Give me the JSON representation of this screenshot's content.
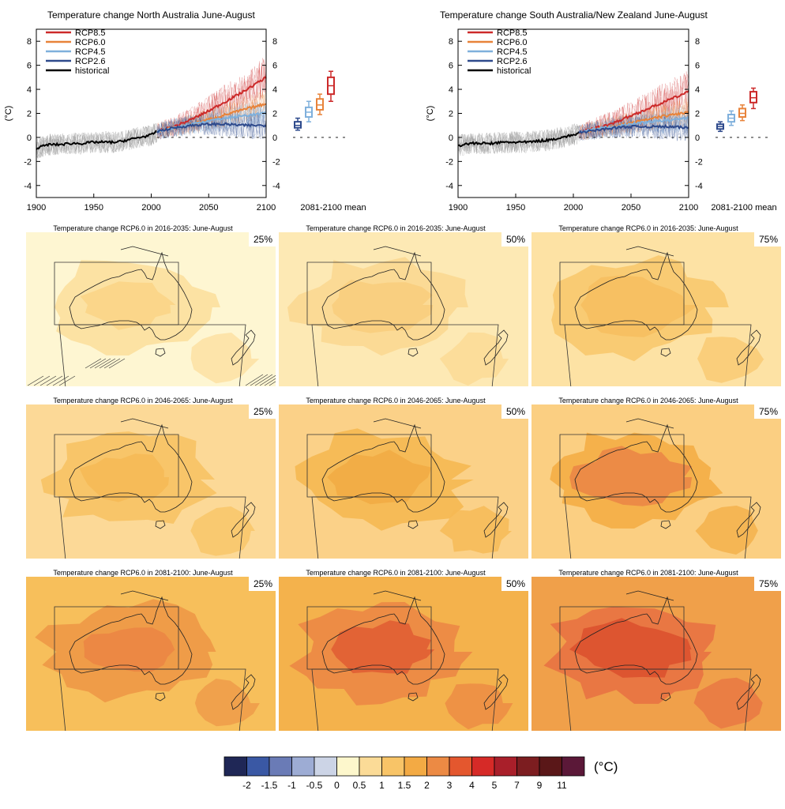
{
  "chart_data": [
    {
      "type": "line",
      "title": "Temperature change North Australia June-August",
      "ylabel": "(°C)",
      "xlim": [
        1900,
        2100
      ],
      "ylim": [
        -5,
        9
      ],
      "x_ticks": [
        "1900",
        "1950",
        "2000",
        "2050",
        "2100"
      ],
      "y_ticks": [
        "-4",
        "-2",
        "0",
        "2",
        "4",
        "6",
        "8"
      ],
      "legend": [
        "RCP8.5",
        "RCP6.0",
        "RCP4.5",
        "RCP2.6",
        "historical"
      ],
      "legend_placement": "top-left",
      "mean_label": "2081-2100 mean",
      "series": [
        {
          "name": "historical",
          "color": "#000000",
          "x": [
            1900,
            1910,
            1920,
            1930,
            1940,
            1950,
            1960,
            1970,
            1980,
            1990,
            2000,
            2005
          ],
          "y": [
            -0.9,
            -0.6,
            -0.6,
            -0.5,
            -0.5,
            -0.4,
            -0.4,
            -0.4,
            -0.2,
            0.0,
            0.2,
            0.5
          ]
        },
        {
          "name": "RCP8.5",
          "color": "#cc2a2a",
          "x": [
            2005,
            2020,
            2035,
            2050,
            2065,
            2080,
            2100
          ],
          "y": [
            0.5,
            0.9,
            1.5,
            2.2,
            3.0,
            3.8,
            5.0
          ]
        },
        {
          "name": "RCP6.0",
          "color": "#e8833a",
          "x": [
            2005,
            2020,
            2035,
            2050,
            2065,
            2080,
            2100
          ],
          "y": [
            0.5,
            0.8,
            1.1,
            1.5,
            1.9,
            2.3,
            2.8
          ]
        },
        {
          "name": "RCP4.5",
          "color": "#7fb0dc",
          "x": [
            2005,
            2020,
            2035,
            2050,
            2065,
            2080,
            2100
          ],
          "y": [
            0.5,
            0.8,
            1.1,
            1.4,
            1.6,
            1.8,
            2.0
          ]
        },
        {
          "name": "RCP2.6",
          "color": "#2e4a8c",
          "x": [
            2005,
            2020,
            2035,
            2050,
            2065,
            2080,
            2100
          ],
          "y": [
            0.5,
            0.8,
            1.0,
            1.1,
            1.1,
            1.0,
            1.0
          ]
        }
      ],
      "box_means": [
        {
          "name": "RCP2.6",
          "color": "#2e4a8c",
          "low": 0.6,
          "q1": 0.8,
          "median": 1.0,
          "q3": 1.3,
          "high": 1.6
        },
        {
          "name": "RCP4.5",
          "color": "#7fb0dc",
          "low": 1.3,
          "q1": 1.7,
          "median": 2.1,
          "q3": 2.5,
          "high": 3.0
        },
        {
          "name": "RCP6.0",
          "color": "#e8833a",
          "low": 1.9,
          "q1": 2.3,
          "median": 2.7,
          "q3": 3.2,
          "high": 3.6
        },
        {
          "name": "RCP8.5",
          "color": "#cc2a2a",
          "low": 3.0,
          "q1": 3.6,
          "median": 4.3,
          "q3": 5.0,
          "high": 5.5
        }
      ]
    },
    {
      "type": "line",
      "title": "Temperature change South Australia/New Zealand June-August",
      "ylabel": "(°C)",
      "xlim": [
        1900,
        2100
      ],
      "ylim": [
        -5,
        9
      ],
      "x_ticks": [
        "1900",
        "1950",
        "2000",
        "2050",
        "2100"
      ],
      "y_ticks": [
        "-4",
        "-2",
        "0",
        "2",
        "4",
        "6",
        "8"
      ],
      "legend": [
        "RCP8.5",
        "RCP6.0",
        "RCP4.5",
        "RCP2.6",
        "historical"
      ],
      "legend_placement": "top-left",
      "mean_label": "2081-2100 mean",
      "series": [
        {
          "name": "historical",
          "color": "#000000",
          "x": [
            1900,
            1910,
            1920,
            1930,
            1940,
            1950,
            1960,
            1970,
            1980,
            1990,
            2000,
            2005
          ],
          "y": [
            -0.7,
            -0.5,
            -0.5,
            -0.5,
            -0.4,
            -0.4,
            -0.4,
            -0.3,
            -0.2,
            0.0,
            0.2,
            0.4
          ]
        },
        {
          "name": "RCP8.5",
          "color": "#cc2a2a",
          "x": [
            2005,
            2020,
            2035,
            2050,
            2065,
            2080,
            2100
          ],
          "y": [
            0.4,
            0.8,
            1.2,
            1.8,
            2.4,
            3.0,
            3.8
          ]
        },
        {
          "name": "RCP6.0",
          "color": "#e8833a",
          "x": [
            2005,
            2020,
            2035,
            2050,
            2065,
            2080,
            2100
          ],
          "y": [
            0.4,
            0.7,
            0.9,
            1.2,
            1.5,
            1.8,
            2.1
          ]
        },
        {
          "name": "RCP4.5",
          "color": "#7fb0dc",
          "x": [
            2005,
            2020,
            2035,
            2050,
            2065,
            2080,
            2100
          ],
          "y": [
            0.4,
            0.7,
            0.9,
            1.1,
            1.3,
            1.4,
            1.6
          ]
        },
        {
          "name": "RCP2.6",
          "color": "#2e4a8c",
          "x": [
            2005,
            2020,
            2035,
            2050,
            2065,
            2080,
            2100
          ],
          "y": [
            0.4,
            0.6,
            0.8,
            0.9,
            0.9,
            0.9,
            0.8
          ]
        }
      ],
      "box_means": [
        {
          "name": "RCP2.6",
          "color": "#2e4a8c",
          "low": 0.5,
          "q1": 0.7,
          "median": 0.9,
          "q3": 1.1,
          "high": 1.3
        },
        {
          "name": "RCP4.5",
          "color": "#7fb0dc",
          "low": 1.0,
          "q1": 1.3,
          "median": 1.6,
          "q3": 1.9,
          "high": 2.2
        },
        {
          "name": "RCP6.0",
          "color": "#e8833a",
          "low": 1.4,
          "q1": 1.7,
          "median": 2.0,
          "q3": 2.4,
          "high": 2.7
        },
        {
          "name": "RCP8.5",
          "color": "#cc2a2a",
          "low": 2.4,
          "q1": 2.9,
          "median": 3.3,
          "q3": 3.8,
          "high": 4.1
        }
      ]
    },
    {
      "type": "heatmap",
      "map_titles": [
        "Temperature change RCP6.0 in 2016-2035: June-August",
        "Temperature change RCP6.0 in 2046-2065: June-August",
        "Temperature change RCP6.0 in 2081-2100: June-August"
      ],
      "percentiles": [
        "25%",
        "50%",
        "75%"
      ],
      "map_levels": [
        {
          "period": "2016-2035",
          "background": [
            "#fef6d2",
            "#fde9b4",
            "#fde2a4"
          ],
          "land": [
            "#fce0a0",
            "#fbd993",
            "#f9c971"
          ],
          "core": [
            "#fbd68a",
            "#f9cf80",
            "#f7c062"
          ]
        },
        {
          "period": "2046-2065",
          "background": [
            "#fcd997",
            "#fbd188",
            "#fbcf82"
          ],
          "land": [
            "#f8c466",
            "#f6b954",
            "#f4af48"
          ],
          "core": [
            "#f6bb58",
            "#f2ad46",
            "#ec8b46"
          ]
        },
        {
          "period": "2081-2100",
          "background": [
            "#f7bf5b",
            "#f4b24c",
            "#f0a04a"
          ],
          "land": [
            "#ee9a48",
            "#ec8a44",
            "#e87542"
          ],
          "core": [
            "#ec8844",
            "#e26335",
            "#dd5530"
          ]
        }
      ]
    },
    {
      "type": "table",
      "colorbar": {
        "unit": "(°C)",
        "colors": [
          "#1f2756",
          "#3a58a4",
          "#6a7bb6",
          "#9dacd4",
          "#ccd4e6",
          "#fdf7cc",
          "#fbdb97",
          "#f8c467",
          "#f3aa44",
          "#ec8a44",
          "#e4572e",
          "#d62a27",
          "#a91f2a",
          "#7c1d20",
          "#5a1718",
          "#5b1838"
        ],
        "labels": [
          "-2",
          "-1.5",
          "-1",
          "-0.5",
          "0",
          "0.5",
          "1",
          "1.5",
          "2",
          "3",
          "4",
          "5",
          "7",
          "9",
          "11"
        ]
      }
    }
  ]
}
